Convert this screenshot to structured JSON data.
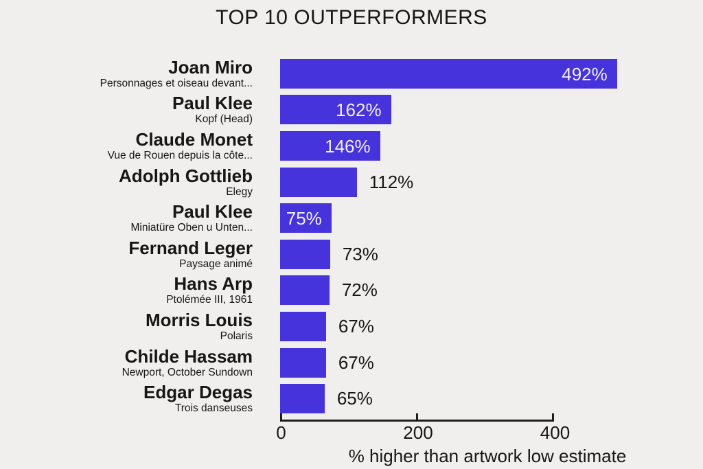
{
  "title": "TOP 10 OUTPERFORMERS",
  "x_axis": {
    "label": "% higher than artwork low estimate",
    "ticks": [
      0,
      200,
      400
    ]
  },
  "colors": {
    "background": "#f0efed",
    "bar": "#4733db",
    "text": "#161616",
    "inside_label": "#f2f0ee",
    "axis": "#1c1c1c"
  },
  "chart_data": {
    "type": "bar",
    "orientation": "horizontal",
    "title": "TOP 10 OUTPERFORMERS",
    "xlabel": "% higher than artwork low estimate",
    "xlim": [
      0,
      400
    ],
    "xticks": [
      0,
      200,
      400
    ],
    "grid": false,
    "legend": false,
    "categories": [
      "Joan Miro",
      "Paul Klee",
      "Claude Monet",
      "Adolph Gottlieb",
      "Paul Klee",
      "Fernand Leger",
      "Hans Arp",
      "Morris Louis",
      "Childe Hassam",
      "Edgar Degas"
    ],
    "values": [
      492,
      162,
      146,
      112,
      75,
      73,
      72,
      67,
      67,
      65
    ],
    "bars": [
      {
        "artist": "Joan Miro",
        "artwork": "Personnages et oiseau devant...",
        "value": 492,
        "label": "492%",
        "label_position": "inside"
      },
      {
        "artist": "Paul Klee",
        "artwork": "Kopf (Head)",
        "value": 162,
        "label": "162%",
        "label_position": "inside"
      },
      {
        "artist": "Claude Monet",
        "artwork": "Vue de Rouen depuis la côte...",
        "value": 146,
        "label": "146%",
        "label_position": "inside"
      },
      {
        "artist": "Adolph Gottlieb",
        "artwork": "Elegy",
        "value": 112,
        "label": "112%",
        "label_position": "outside"
      },
      {
        "artist": "Paul Klee",
        "artwork": "Miniatüre Oben u Unten...",
        "value": 75,
        "label": "75%",
        "label_position": "inside"
      },
      {
        "artist": "Fernand Leger",
        "artwork": "Paysage animé",
        "value": 73,
        "label": "73%",
        "label_position": "outside"
      },
      {
        "artist": "Hans Arp",
        "artwork": "Ptolémée III, 1961",
        "value": 72,
        "label": "72%",
        "label_position": "outside"
      },
      {
        "artist": "Morris Louis",
        "artwork": "Polaris",
        "value": 67,
        "label": "67%",
        "label_position": "outside"
      },
      {
        "artist": "Childe Hassam",
        "artwork": "Newport, October Sundown",
        "value": 67,
        "label": "67%",
        "label_position": "outside"
      },
      {
        "artist": "Edgar Degas",
        "artwork": "Trois danseuses",
        "value": 65,
        "label": "65%",
        "label_position": "outside"
      }
    ]
  }
}
